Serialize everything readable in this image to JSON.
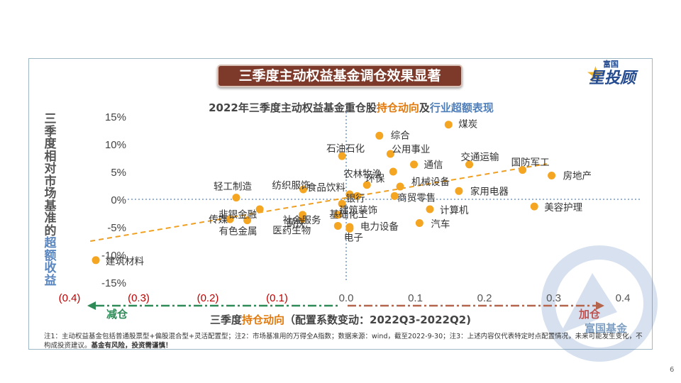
{
  "slide": {
    "banner": "三季度主动权益基金调仓效果显著",
    "logo_small": "富国",
    "logo_main": "星投顾",
    "page_number": "6",
    "reduce_label": "减仓",
    "add_label": "加仓",
    "watermark": "富国基金",
    "note_main": "注1：主动权益基金包括普通股票型+偏股混合型+灵活配置型；注2：市场基准用的万得全A指数；数据来源：wind，截至2022-9-30；注3：上述内容仅代表特定时点配置情况，未来可能发生变化，不构成投资建议。",
    "note_bold": "基金有风险，投资需谨慎！"
  },
  "chart_data": {
    "type": "scatter",
    "title_parts": [
      "2022年三季度主动权益基金重仓股",
      "持仓动向",
      "及",
      "行业超额表现"
    ],
    "ylabel_parts": [
      "三季度相对市场基准的",
      "超额收益"
    ],
    "xlabel_parts": [
      "三季度",
      "持仓动向",
      "（配置系数变动：2022Q3-2022Q2)"
    ],
    "xlim": [
      -0.4,
      0.4
    ],
    "ylim": [
      -15,
      15
    ],
    "x_ticks": [
      "(0.4)",
      "(0.3)",
      "(0.2)",
      "(0.1)",
      "0.0",
      "0.1",
      "0.2",
      "0.3",
      "0.4"
    ],
    "y_ticks": [
      "15%",
      "10%",
      "5%",
      "0%",
      "-5%",
      "-10%",
      "-15%"
    ],
    "grid": false,
    "trendline": true,
    "marker_color": "#f4a623",
    "points": [
      {
        "name": "煤炭",
        "x": 0.148,
        "y": 13.5
      },
      {
        "name": "综合",
        "x": 0.048,
        "y": 11.5
      },
      {
        "name": "石油石化",
        "x": -0.006,
        "y": 7.8
      },
      {
        "name": "公用事业",
        "x": 0.064,
        "y": 8.2
      },
      {
        "name": "交通运输",
        "x": 0.178,
        "y": 6.3
      },
      {
        "name": "通信",
        "x": 0.098,
        "y": 6.3
      },
      {
        "name": "农林牧渔",
        "x": 0.068,
        "y": 5.0
      },
      {
        "name": "国防军工",
        "x": 0.255,
        "y": 5.3
      },
      {
        "name": "房地产",
        "x": 0.297,
        "y": 4.3
      },
      {
        "name": "环保",
        "x": 0.03,
        "y": 2.6
      },
      {
        "name": "机械设备",
        "x": 0.078,
        "y": 2.3
      },
      {
        "name": "纺织服饰",
        "x": -0.062,
        "y": 1.8
      },
      {
        "name": "食品饮料",
        "x": 0.005,
        "y": 0.9
      },
      {
        "name": "轻工制造",
        "x": -0.159,
        "y": 0.3
      },
      {
        "name": "银行",
        "x": 0.016,
        "y": 0.6
      },
      {
        "name": "家用电器",
        "x": 0.163,
        "y": 1.5
      },
      {
        "name": "商贸零售",
        "x": 0.07,
        "y": 0.6
      },
      {
        "name": "建筑装饰",
        "x": -0.006,
        "y": -0.8
      },
      {
        "name": "非银金融",
        "x": -0.125,
        "y": -1.8
      },
      {
        "name": "社会服务",
        "x": -0.063,
        "y": -2.8
      },
      {
        "name": "计算机",
        "x": 0.121,
        "y": -1.8
      },
      {
        "name": "美容护理",
        "x": 0.272,
        "y": -1.3
      },
      {
        "name": "钢铁",
        "x": -0.063,
        "y": -3.5
      },
      {
        "name": "基础化工",
        "x": -0.012,
        "y": -2.8
      },
      {
        "name": "传媒",
        "x": -0.168,
        "y": -3.6
      },
      {
        "name": "有色金属",
        "x": -0.143,
        "y": -3.8
      },
      {
        "name": "汽车",
        "x": 0.106,
        "y": -4.3
      },
      {
        "name": "医药生物",
        "x": -0.012,
        "y": -4.8
      },
      {
        "name": "电子",
        "x": 0.005,
        "y": -5.3
      },
      {
        "name": "电力设备",
        "x": 0.005,
        "y": -5.0
      },
      {
        "name": "建筑材料",
        "x": -0.362,
        "y": -11.0
      }
    ]
  }
}
